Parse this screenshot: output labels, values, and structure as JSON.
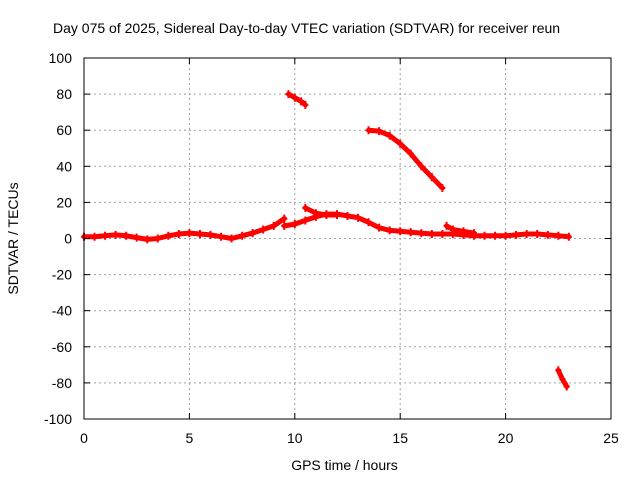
{
  "chart_data": {
    "type": "scatter",
    "title": "Day 075 of 2025, Sidereal Day-to-day VTEC variation (SDTVAR) for receiver reun",
    "xlabel": "GPS time / hours",
    "ylabel": "SDTVAR / TECUs",
    "xlim": [
      0,
      25
    ],
    "ylim": [
      -100,
      100
    ],
    "xticks": [
      0,
      5,
      10,
      15,
      20,
      25
    ],
    "yticks": [
      -100,
      -80,
      -60,
      -40,
      -20,
      0,
      20,
      40,
      60,
      80,
      100
    ],
    "grid": true,
    "legend": "none",
    "series_color": "#ff0000",
    "series": [
      {
        "name": "main",
        "x": [
          0,
          0.5,
          1,
          1.5,
          2,
          2.5,
          3,
          3.5,
          4,
          4.5,
          5,
          5.5,
          6,
          6.5,
          7,
          7.5,
          8,
          8.5,
          9,
          9.5
        ],
        "y": [
          1,
          1,
          1.5,
          2,
          1.5,
          0.5,
          -0.5,
          0,
          1.5,
          2.5,
          3,
          2.5,
          2,
          1,
          0,
          1.5,
          3,
          5,
          7,
          11
        ]
      },
      {
        "name": "main-2",
        "x": [
          9.5,
          10,
          10.5,
          11,
          11.5,
          12,
          12.5,
          13,
          13.5,
          14,
          14.5,
          15,
          15.5,
          16,
          16.5,
          17,
          17.5,
          18,
          18.5,
          19,
          19.5,
          20,
          20.5,
          21,
          21.5,
          22,
          22.5,
          23
        ],
        "y": [
          7,
          8,
          10,
          12,
          13.5,
          13.5,
          12.5,
          11.5,
          9,
          6,
          4.5,
          4,
          3.5,
          3,
          2.5,
          2.5,
          2.5,
          2,
          1.5,
          1.5,
          1.5,
          1.5,
          2,
          2.5,
          2.5,
          2,
          1.5,
          1
        ]
      },
      {
        "name": "arc-a",
        "x": [
          9.7,
          10,
          10.3,
          10.5
        ],
        "y": [
          80,
          78,
          76,
          74
        ]
      },
      {
        "name": "arc-b",
        "x": [
          13.5,
          14,
          14.5,
          15,
          15.5,
          16,
          16.5,
          17
        ],
        "y": [
          60,
          59.5,
          57,
          52.5,
          47,
          40,
          34,
          28
        ]
      },
      {
        "name": "arc-c",
        "x": [
          10.5,
          11,
          11.5,
          12
        ],
        "y": [
          17,
          14,
          13,
          13
        ]
      },
      {
        "name": "arc-d",
        "x": [
          17.2,
          17.5,
          18,
          18.5
        ],
        "y": [
          7,
          5,
          4,
          3
        ]
      },
      {
        "name": "arc-e",
        "x": [
          22.5,
          22.7,
          22.9
        ],
        "y": [
          -73,
          -78,
          -82
        ]
      }
    ]
  }
}
